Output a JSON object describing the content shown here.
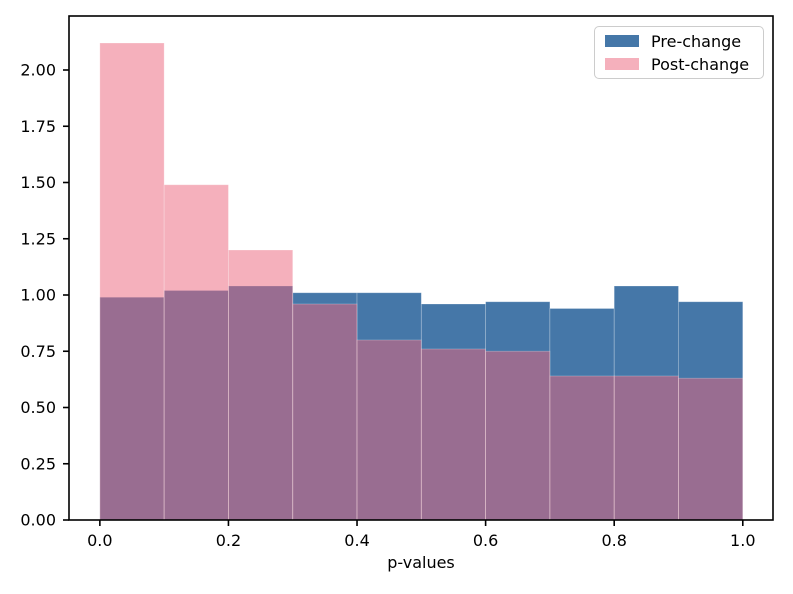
{
  "chart_data": {
    "type": "histogram",
    "title": "",
    "xlabel": "p-values",
    "ylabel": "",
    "bin_edges": [
      0.0,
      0.1,
      0.2,
      0.3,
      0.4,
      0.5,
      0.6,
      0.7,
      0.8,
      0.9,
      1.0
    ],
    "series": [
      {
        "name": "Pre-change",
        "color": "#4577A8",
        "alpha": 1.0,
        "values": [
          0.99,
          1.02,
          1.04,
          1.01,
          1.01,
          0.96,
          0.97,
          0.94,
          1.04,
          0.97
        ]
      },
      {
        "name": "Post-change",
        "color": "#EB647C",
        "alpha": 0.51,
        "values": [
          2.12,
          1.49,
          1.2,
          0.96,
          0.8,
          0.76,
          0.75,
          0.64,
          0.64,
          0.63
        ]
      }
    ],
    "xlim": [
      -0.048,
      1.047
    ],
    "ylim": [
      0,
      2.24
    ],
    "xticks": {
      "values": [
        0.0,
        0.2,
        0.4,
        0.6,
        0.8,
        1.0
      ],
      "labels": [
        "0.0",
        "0.2",
        "0.4",
        "0.6",
        "0.8",
        "1.0"
      ]
    },
    "yticks": {
      "values": [
        0.0,
        0.25,
        0.5,
        0.75,
        1.0,
        1.25,
        1.5,
        1.75,
        2.0
      ],
      "labels": [
        "0.00",
        "0.25",
        "0.50",
        "0.75",
        "1.00",
        "1.25",
        "1.50",
        "1.75",
        "2.00"
      ]
    },
    "grid": false,
    "legend": {
      "location": "upper right",
      "entries": [
        {
          "label": "Pre-change",
          "swatch_color": "#4577A8"
        },
        {
          "label": "Post-change",
          "swatch_color": "#F5B0BC"
        }
      ]
    }
  }
}
